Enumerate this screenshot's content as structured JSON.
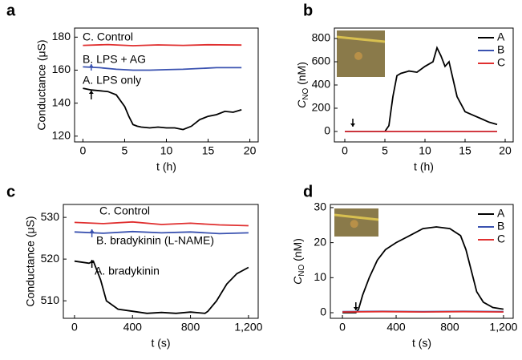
{
  "chart_data": [
    {
      "type": "line",
      "panel": "a",
      "xlabel": "t (h)",
      "ylabel": "Conductance (μS)",
      "xlim": [
        -1,
        21
      ],
      "ylim": [
        116.5,
        185.5
      ],
      "xticks": [
        0,
        5,
        10,
        15,
        20
      ],
      "yticks": [
        120,
        140,
        160,
        180
      ],
      "annotations": [
        {
          "text": "C. Control",
          "color": "#e03030"
        },
        {
          "text": "B. LPS + AG",
          "color": "#3a52b0"
        },
        {
          "text": "A. LPS only",
          "color": "#000000"
        }
      ],
      "series": [
        {
          "name": "C",
          "color": "#e03030",
          "x": [
            0,
            3,
            6,
            9,
            12,
            15,
            19
          ],
          "values": [
            175,
            175.5,
            174.8,
            175.3,
            175,
            175.4,
            175.2
          ]
        },
        {
          "name": "B",
          "color": "#3a52b0",
          "x": [
            0,
            2,
            4,
            6,
            8,
            10,
            12,
            14,
            16,
            19
          ],
          "values": [
            162,
            161.5,
            160.5,
            160,
            160,
            160.3,
            160.5,
            161,
            161.5,
            161.5
          ]
        },
        {
          "name": "A",
          "color": "#000000",
          "x": [
            0,
            1,
            2,
            3,
            4,
            5,
            5.5,
            6,
            6.5,
            7,
            8,
            9,
            10,
            11,
            12,
            13,
            14,
            15,
            16,
            17,
            18,
            19
          ],
          "values": [
            149,
            148,
            147.5,
            147,
            145,
            138,
            132,
            127,
            126,
            125.5,
            125,
            125.5,
            125,
            125,
            124,
            126,
            130,
            132,
            133,
            135,
            134.5,
            136
          ]
        }
      ]
    },
    {
      "type": "line",
      "panel": "b",
      "xlabel": "t (h)",
      "ylabel": {
        "symbol": "C",
        "subscript": "NO",
        "unit": " (nM)"
      },
      "xlim": [
        -1.3,
        21
      ],
      "ylim": [
        -90,
        890
      ],
      "xticks": [
        0,
        5,
        10,
        15,
        20
      ],
      "yticks": [
        0,
        200,
        400,
        600,
        800
      ],
      "legend": "upper right",
      "series": [
        {
          "name": "A",
          "color": "#000000",
          "x": [
            0,
            5,
            5.5,
            6,
            6.5,
            7,
            8,
            9,
            10,
            11,
            11.5,
            12,
            12.5,
            13,
            13.5,
            14,
            15,
            16,
            17,
            18,
            19
          ],
          "values": [
            0,
            0,
            50,
            300,
            480,
            500,
            520,
            510,
            560,
            600,
            720,
            650,
            560,
            600,
            450,
            300,
            170,
            140,
            110,
            80,
            60
          ]
        },
        {
          "name": "B",
          "color": "#3a52b0",
          "x": [
            0,
            19
          ],
          "values": [
            0,
            0
          ]
        },
        {
          "name": "C",
          "color": "#e03030",
          "x": [
            0,
            19
          ],
          "values": [
            0,
            0
          ]
        }
      ]
    },
    {
      "type": "line",
      "panel": "c",
      "xlabel": "t (s)",
      "ylabel": "Conductance (μS)",
      "xlim": [
        -77,
        1267
      ],
      "ylim": [
        505.8,
        533.1
      ],
      "xticks": [
        0,
        400,
        800,
        {
          "value": 1200,
          "label": "1,200"
        }
      ],
      "yticks": [
        510,
        520,
        530
      ],
      "annotations": [
        {
          "text": "C. Control",
          "color": "#e03030"
        },
        {
          "text": "B. bradykinin (L-NAME)",
          "color": "#3a52b0"
        },
        {
          "text": "A. bradykinin",
          "color": "#000000"
        }
      ],
      "series": [
        {
          "name": "C",
          "color": "#e03030",
          "x": [
            0,
            200,
            400,
            600,
            800,
            1000,
            1200
          ],
          "values": [
            528.8,
            528.5,
            528.9,
            528.3,
            528.6,
            528.2,
            528
          ]
        },
        {
          "name": "B",
          "color": "#3a52b0",
          "x": [
            0,
            200,
            400,
            600,
            800,
            1000,
            1200
          ],
          "values": [
            526.5,
            526.2,
            526.6,
            526.3,
            526.5,
            526.1,
            526.3
          ]
        },
        {
          "name": "A",
          "color": "#000000",
          "x": [
            0,
            100,
            130,
            180,
            220,
            300,
            400,
            500,
            600,
            700,
            800,
            900,
            920,
            980,
            1050,
            1120,
            1200
          ],
          "values": [
            519.5,
            519,
            519.5,
            515,
            510,
            508,
            507.5,
            507,
            507.2,
            507,
            507.3,
            507,
            507.5,
            510,
            514,
            516.5,
            518
          ]
        }
      ]
    },
    {
      "type": "line",
      "panel": "d",
      "xlabel": "t (s)",
      "ylabel": {
        "symbol": "C",
        "subscript": "NO",
        "unit": " (nM)"
      },
      "xlim": [
        -90,
        1272
      ],
      "ylim": [
        -1.6,
        30.9
      ],
      "xticks": [
        0,
        400,
        800,
        {
          "value": 1200,
          "label": "1,200"
        }
      ],
      "yticks": [
        0,
        10,
        20,
        30
      ],
      "legend": "upper right",
      "series": [
        {
          "name": "A",
          "color": "#000000",
          "x": [
            0,
            100,
            120,
            150,
            200,
            260,
            320,
            400,
            500,
            600,
            700,
            800,
            880,
            920,
            960,
            1000,
            1050,
            1120,
            1200
          ],
          "values": [
            0,
            0,
            1,
            5,
            10,
            15,
            18,
            20,
            22,
            24,
            24.5,
            24,
            22,
            18,
            12,
            6,
            3,
            1.5,
            1
          ]
        },
        {
          "name": "B",
          "color": "#3a52b0",
          "x": [
            0,
            300,
            600,
            900,
            1200
          ],
          "values": [
            0.3,
            0.4,
            0.3,
            0.4,
            0.3
          ]
        },
        {
          "name": "C",
          "color": "#e03030",
          "x": [
            0,
            300,
            600,
            900,
            1200
          ],
          "values": [
            0.2,
            0.3,
            0.2,
            0.3,
            0.2
          ]
        }
      ]
    }
  ]
}
